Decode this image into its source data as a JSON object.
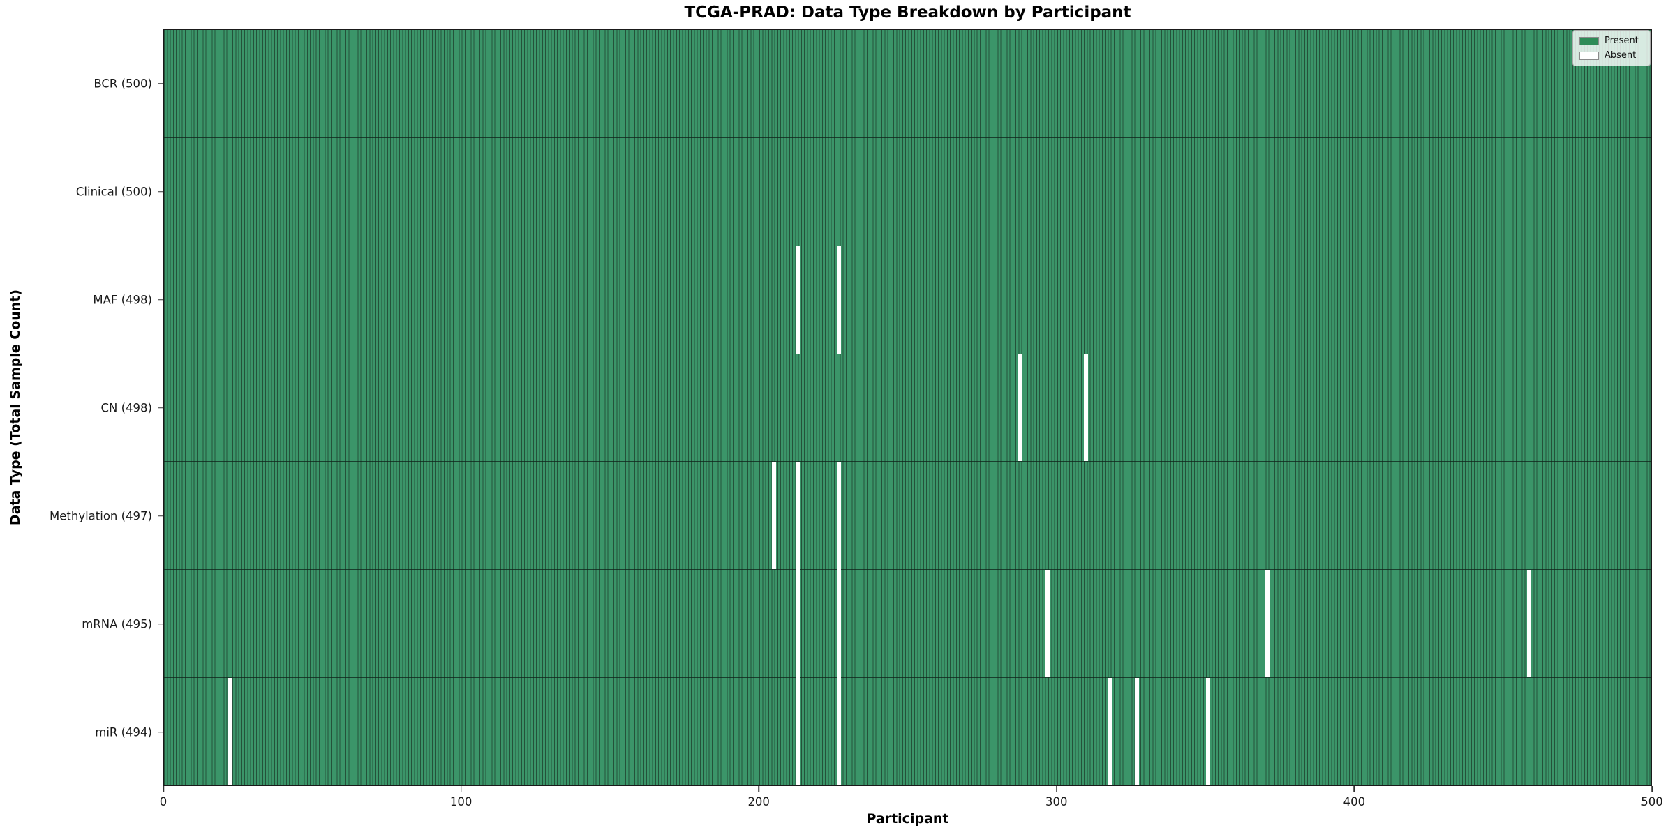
{
  "title": "TCGA-PRAD: Data Type Breakdown by Participant",
  "axes": {
    "xlabel": "Participant",
    "ylabel": "Data Type (Total Sample Count)"
  },
  "legend": {
    "items": [
      {
        "label": "Present",
        "color": "#2e8b57"
      },
      {
        "label": "Absent",
        "color": "#ffffff"
      }
    ]
  },
  "chart_data": {
    "type": "heatmap",
    "title": "TCGA-PRAD: Data Type Breakdown by Participant",
    "xlabel": "Participant",
    "ylabel": "Data Type (Total Sample Count)",
    "x_range": [
      0,
      500
    ],
    "x_ticks": [
      0,
      100,
      200,
      300,
      400,
      500
    ],
    "n_participants": 500,
    "legend_position": "upper right",
    "colors": {
      "present_fill": "#3b9569",
      "present_legend": "#2e8b57",
      "bar_edge": "#24523a",
      "absent": "#ffffff"
    },
    "rows": [
      {
        "data_type": "BCR",
        "label": "BCR (500)",
        "total_samples": 500,
        "absent_participants": []
      },
      {
        "data_type": "Clinical",
        "label": "Clinical (500)",
        "total_samples": 500,
        "absent_participants": []
      },
      {
        "data_type": "MAF",
        "label": "MAF (498)",
        "total_samples": 498,
        "absent_participants": [
          213,
          227
        ]
      },
      {
        "data_type": "CN",
        "label": "CN (498)",
        "total_samples": 498,
        "absent_participants": [
          288,
          310
        ]
      },
      {
        "data_type": "Methylation",
        "label": "Methylation (497)",
        "total_samples": 497,
        "absent_participants": [
          205,
          213,
          227
        ]
      },
      {
        "data_type": "mRNA",
        "label": "mRNA (495)",
        "total_samples": 495,
        "absent_participants": [
          213,
          227,
          297,
          371,
          459
        ]
      },
      {
        "data_type": "miR",
        "label": "miR (494)",
        "total_samples": 494,
        "absent_participants": [
          22,
          213,
          227,
          318,
          327,
          351
        ]
      }
    ]
  }
}
